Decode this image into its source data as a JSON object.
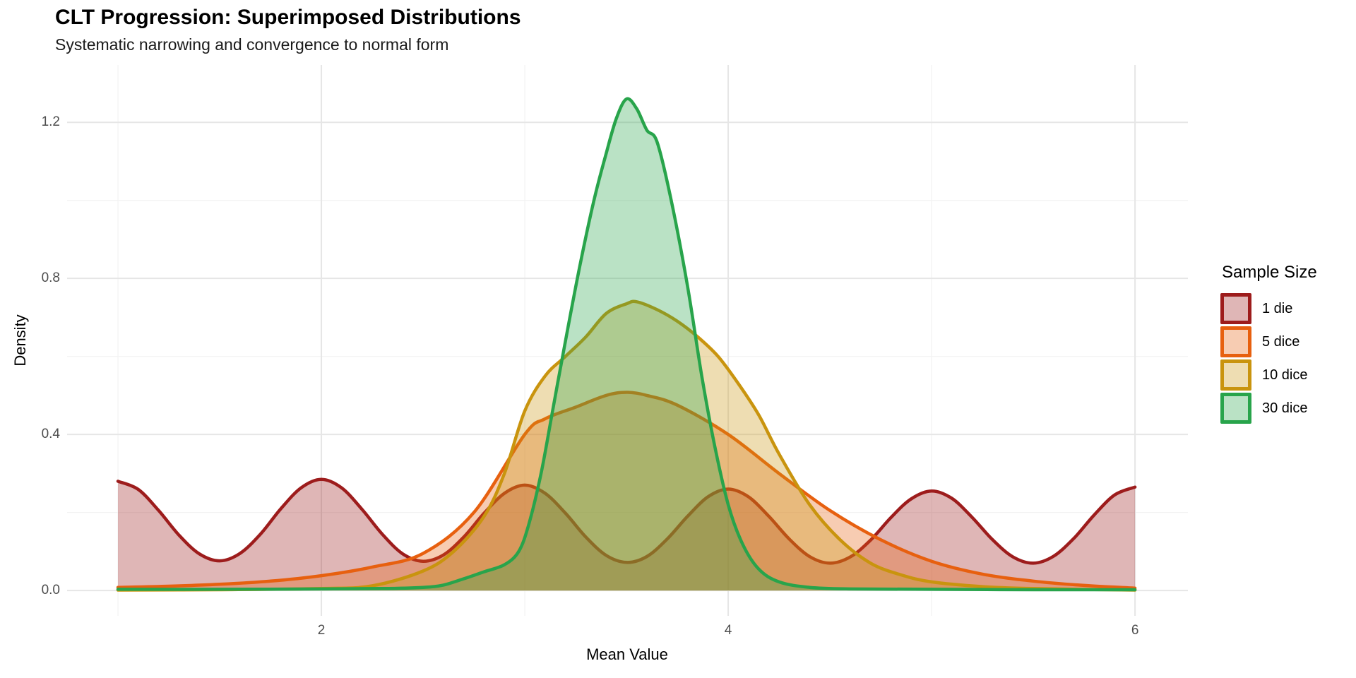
{
  "chart_data": {
    "type": "area",
    "title": "CLT Progression: Superimposed Distributions",
    "subtitle": "Systematic narrowing and convergence to normal form",
    "xlabel": "Mean Value",
    "ylabel": "Density",
    "legend_title": "Sample Size",
    "legend_position": "right",
    "background_color": "#FFFFFF",
    "grid": {
      "major_color": "#E6E6E6",
      "minor_color": "#F3F3F3",
      "grid_on": true
    },
    "x_axis": {
      "range": [
        0.75,
        6.26
      ],
      "ticks": [
        2,
        4,
        6
      ],
      "tick_labels": [
        "2",
        "4",
        "6"
      ],
      "minor_ticks": [
        1,
        3,
        5
      ]
    },
    "y_axis": {
      "range": [
        -0.065,
        1.347
      ],
      "ticks": [
        0,
        0.4,
        0.8,
        1.2
      ],
      "tick_labels": [
        "0.0",
        "0.4",
        "0.8",
        "1.2"
      ],
      "minor_ticks": [
        0.2,
        0.6,
        1.0
      ]
    },
    "fill_alpha": 0.32,
    "tick_label_color": "#4D4D4D",
    "series": [
      {
        "name": "1 die",
        "color": "#9D1C1C",
        "points": [
          [
            1,
            0.28
          ],
          [
            1.1,
            0.259
          ],
          [
            1.2,
            0.205
          ],
          [
            1.3,
            0.142
          ],
          [
            1.4,
            0.094
          ],
          [
            1.5,
            0.076
          ],
          [
            1.6,
            0.095
          ],
          [
            1.7,
            0.144
          ],
          [
            1.8,
            0.209
          ],
          [
            1.9,
            0.263
          ],
          [
            2,
            0.285
          ],
          [
            2.1,
            0.263
          ],
          [
            2.2,
            0.208
          ],
          [
            2.3,
            0.144
          ],
          [
            2.4,
            0.094
          ],
          [
            2.5,
            0.075
          ],
          [
            2.6,
            0.091
          ],
          [
            2.7,
            0.137
          ],
          [
            2.8,
            0.198
          ],
          [
            2.9,
            0.249
          ],
          [
            3,
            0.27
          ],
          [
            3.1,
            0.249
          ],
          [
            3.2,
            0.198
          ],
          [
            3.3,
            0.137
          ],
          [
            3.4,
            0.09
          ],
          [
            3.5,
            0.072
          ],
          [
            3.6,
            0.087
          ],
          [
            3.7,
            0.132
          ],
          [
            3.8,
            0.19
          ],
          [
            3.9,
            0.24
          ],
          [
            4,
            0.26
          ],
          [
            4.1,
            0.24
          ],
          [
            4.2,
            0.19
          ],
          [
            4.3,
            0.132
          ],
          [
            4.4,
            0.087
          ],
          [
            4.5,
            0.07
          ],
          [
            4.6,
            0.086
          ],
          [
            4.7,
            0.129
          ],
          [
            4.8,
            0.187
          ],
          [
            4.9,
            0.235
          ],
          [
            5,
            0.255
          ],
          [
            5.1,
            0.236
          ],
          [
            5.2,
            0.187
          ],
          [
            5.3,
            0.13
          ],
          [
            5.4,
            0.086
          ],
          [
            5.5,
            0.07
          ],
          [
            5.6,
            0.088
          ],
          [
            5.7,
            0.134
          ],
          [
            5.8,
            0.194
          ],
          [
            5.9,
            0.245
          ],
          [
            6,
            0.265
          ]
        ]
      },
      {
        "name": "5 dice",
        "color": "#E7600F",
        "points": [
          [
            1,
            0.008
          ],
          [
            1.25,
            0.011
          ],
          [
            1.5,
            0.016
          ],
          [
            1.75,
            0.024
          ],
          [
            2,
            0.038
          ],
          [
            2.25,
            0.06
          ],
          [
            2.5,
            0.095
          ],
          [
            2.75,
            0.2
          ],
          [
            3,
            0.4
          ],
          [
            3.1,
            0.44
          ],
          [
            3.25,
            0.47
          ],
          [
            3.4,
            0.5
          ],
          [
            3.5,
            0.508
          ],
          [
            3.6,
            0.5
          ],
          [
            3.75,
            0.475
          ],
          [
            4,
            0.4
          ],
          [
            4.25,
            0.3
          ],
          [
            4.5,
            0.205
          ],
          [
            4.75,
            0.13
          ],
          [
            5,
            0.075
          ],
          [
            5.25,
            0.042
          ],
          [
            5.5,
            0.024
          ],
          [
            5.75,
            0.013
          ],
          [
            6,
            0.006
          ]
        ]
      },
      {
        "name": "10 dice",
        "color": "#C9940E",
        "points": [
          [
            1,
            0.001
          ],
          [
            1.5,
            0.002
          ],
          [
            2,
            0.005
          ],
          [
            2.25,
            0.012
          ],
          [
            2.5,
            0.05
          ],
          [
            2.65,
            0.1
          ],
          [
            2.8,
            0.19
          ],
          [
            2.9,
            0.3
          ],
          [
            3,
            0.46
          ],
          [
            3.1,
            0.55
          ],
          [
            3.2,
            0.6
          ],
          [
            3.3,
            0.65
          ],
          [
            3.4,
            0.71
          ],
          [
            3.5,
            0.735
          ],
          [
            3.55,
            0.74
          ],
          [
            3.65,
            0.72
          ],
          [
            3.75,
            0.69
          ],
          [
            3.85,
            0.65
          ],
          [
            3.95,
            0.6
          ],
          [
            4.05,
            0.53
          ],
          [
            4.15,
            0.45
          ],
          [
            4.25,
            0.35
          ],
          [
            4.4,
            0.22
          ],
          [
            4.55,
            0.13
          ],
          [
            4.7,
            0.07
          ],
          [
            4.85,
            0.04
          ],
          [
            5,
            0.022
          ],
          [
            5.25,
            0.01
          ],
          [
            5.5,
            0.005
          ],
          [
            6,
            0.001
          ]
        ]
      },
      {
        "name": "30 dice",
        "color": "#28A44B",
        "points": [
          [
            1,
            0.003
          ],
          [
            1.5,
            0.003
          ],
          [
            2,
            0.004
          ],
          [
            2.3,
            0.005
          ],
          [
            2.5,
            0.008
          ],
          [
            2.6,
            0.014
          ],
          [
            2.7,
            0.03
          ],
          [
            2.8,
            0.048
          ],
          [
            2.9,
            0.066
          ],
          [
            2.97,
            0.1
          ],
          [
            3.02,
            0.17
          ],
          [
            3.08,
            0.3
          ],
          [
            3.14,
            0.47
          ],
          [
            3.2,
            0.64
          ],
          [
            3.27,
            0.83
          ],
          [
            3.34,
            1.0
          ],
          [
            3.4,
            1.12
          ],
          [
            3.45,
            1.21
          ],
          [
            3.5,
            1.26
          ],
          [
            3.55,
            1.235
          ],
          [
            3.6,
            1.18
          ],
          [
            3.65,
            1.15
          ],
          [
            3.72,
            1.0
          ],
          [
            3.8,
            0.78
          ],
          [
            3.87,
            0.55
          ],
          [
            3.93,
            0.38
          ],
          [
            4,
            0.22
          ],
          [
            4.07,
            0.12
          ],
          [
            4.15,
            0.055
          ],
          [
            4.25,
            0.022
          ],
          [
            4.4,
            0.008
          ],
          [
            4.6,
            0.004
          ],
          [
            5,
            0.003
          ],
          [
            5.5,
            0.002
          ],
          [
            6,
            0.002
          ]
        ]
      }
    ]
  }
}
